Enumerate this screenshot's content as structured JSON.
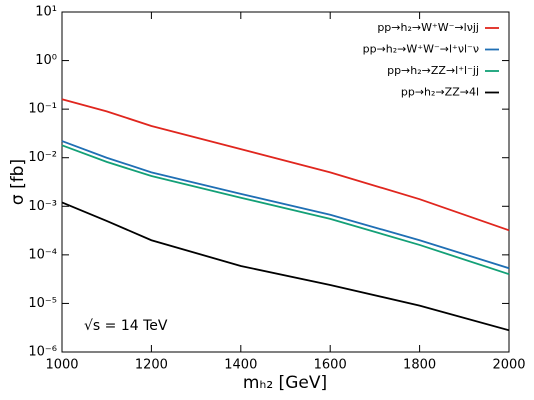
{
  "chart_data": {
    "type": "line",
    "x_label": "mₕ₂ [GeV]",
    "y_label": "σ [fb]",
    "annotation": "√s = 14 TeV",
    "log_y": true,
    "legend": "upper right",
    "x": [
      1000,
      1100,
      1200,
      1400,
      1600,
      1800,
      2000
    ],
    "series": [
      {
        "name": "pp→h₂→W⁺W⁻→lνjj",
        "color": "#e0261e",
        "values": [
          0.16,
          0.09,
          0.045,
          0.015,
          0.005,
          0.0014,
          0.00032
        ]
      },
      {
        "name": "pp→h₂→W⁺W⁻→l⁺νl⁻ν",
        "color": "#1f6fb4",
        "values": [
          0.022,
          0.01,
          0.005,
          0.0018,
          0.00067,
          0.0002,
          5.3e-05
        ]
      },
      {
        "name": "pp→h₂→ZZ→l⁺l⁻jj",
        "color": "#13a077",
        "values": [
          0.018,
          0.0082,
          0.0042,
          0.0015,
          0.00055,
          0.00016,
          4e-05
        ]
      },
      {
        "name": "pp→h₂→ZZ→4l",
        "color": "#000000",
        "values": [
          0.0012,
          0.0005,
          0.0002,
          5.9e-05,
          2.4e-05,
          9e-06,
          2.8e-06
        ]
      }
    ],
    "xlim": [
      1000,
      2000
    ],
    "xticks": [
      1000,
      1200,
      1400,
      1600,
      1800,
      2000
    ],
    "ylim": [
      1e-06,
      10
    ],
    "yticks": [
      {
        "value": 1e-06,
        "label": "10⁻⁶"
      },
      {
        "value": 1e-05,
        "label": "10⁻⁵"
      },
      {
        "value": 0.0001,
        "label": "10⁻⁴"
      },
      {
        "value": 0.001,
        "label": "10⁻³"
      },
      {
        "value": 0.01,
        "label": "10⁻²"
      },
      {
        "value": 0.1,
        "label": "10⁻¹"
      },
      {
        "value": 1,
        "label": "10⁰"
      },
      {
        "value": 10,
        "label": "10¹"
      }
    ]
  }
}
